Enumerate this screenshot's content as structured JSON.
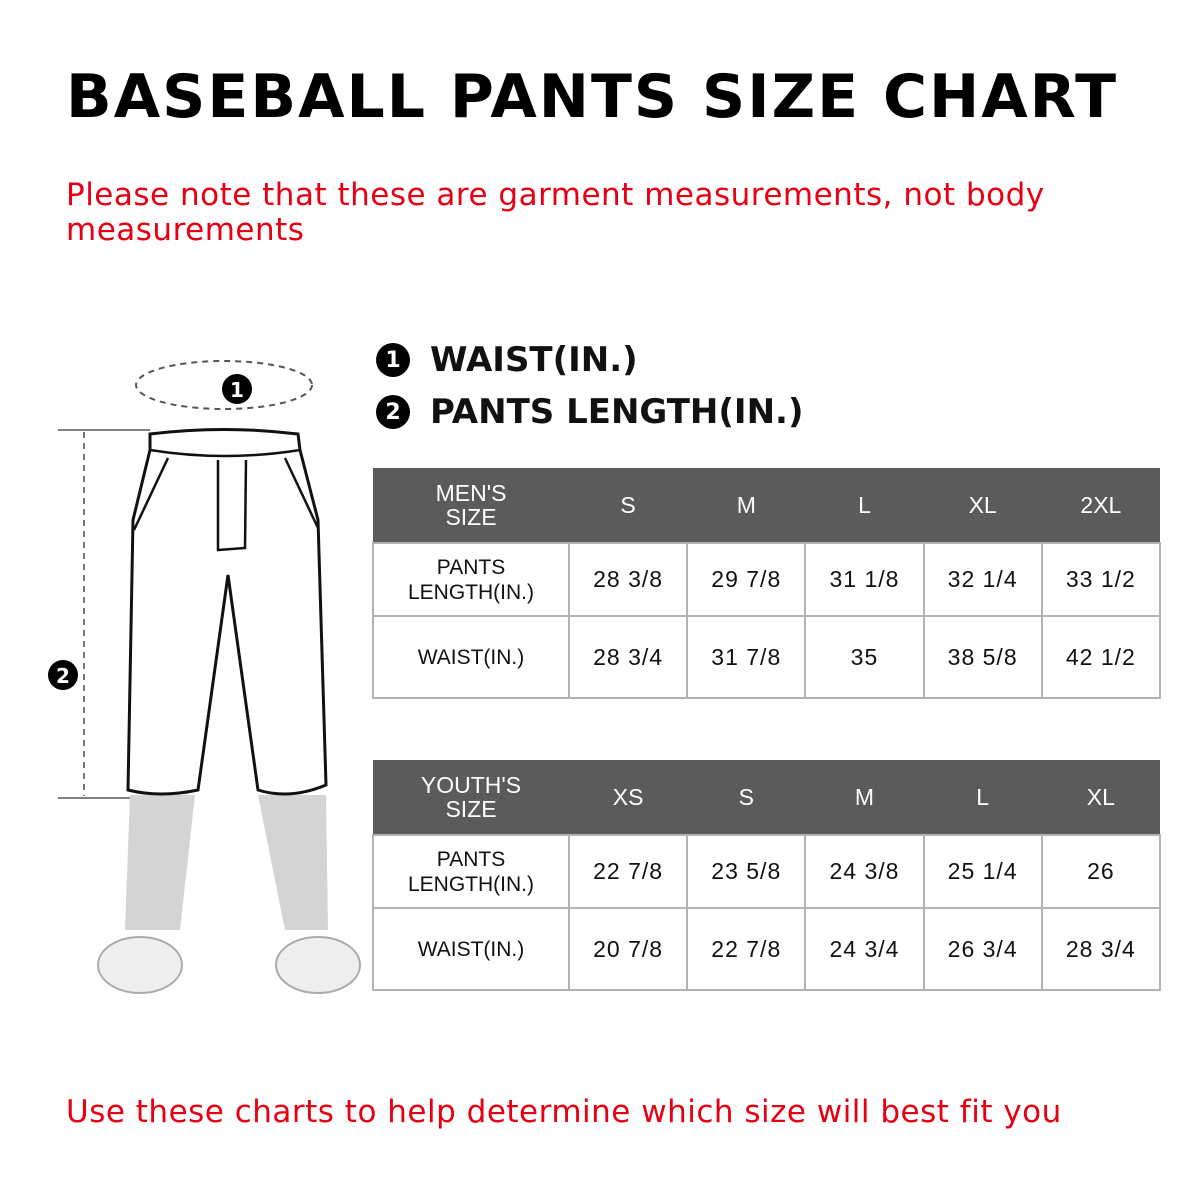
{
  "title": "BASEBALL PANTS SIZE CHART",
  "note": "Please note that these are garment measurements, not body measurements",
  "legend": [
    {
      "number": "1",
      "label": "WAIST(IN.)"
    },
    {
      "number": "2",
      "label": "PANTS LENGTH(IN.)"
    }
  ],
  "figure": {
    "marker_waist": "1",
    "marker_length": "2"
  },
  "mens_table": {
    "header": [
      "MEN'S SIZE",
      "S",
      "M",
      "L",
      "XL",
      "2XL"
    ],
    "rows": [
      {
        "label": "PANTS LENGTH(IN.)",
        "values": [
          "28 3/8",
          "29 7/8",
          "31 1/8",
          "32 1/4",
          "33 1/2"
        ]
      },
      {
        "label": "WAIST(IN.)",
        "values": [
          "28 3/4",
          "31 7/8",
          "35",
          "38 5/8",
          "42 1/2"
        ]
      }
    ]
  },
  "youth_table": {
    "header": [
      "YOUTH'S SIZE",
      "XS",
      "S",
      "M",
      "L",
      "XL"
    ],
    "rows": [
      {
        "label": "PANTS LENGTH(IN.)",
        "values": [
          "22 7/8",
          "23 5/8",
          "24 3/8",
          "25 1/4",
          "26"
        ]
      },
      {
        "label": "WAIST(IN.)",
        "values": [
          "20 7/8",
          "22 7/8",
          "24 3/4",
          "26 3/4",
          "28 3/4"
        ]
      }
    ]
  },
  "footer": "Use these charts to help determine which size will best fit you",
  "colors": {
    "header_bg": "#5b5b5b",
    "accent_red": "#e60012"
  }
}
